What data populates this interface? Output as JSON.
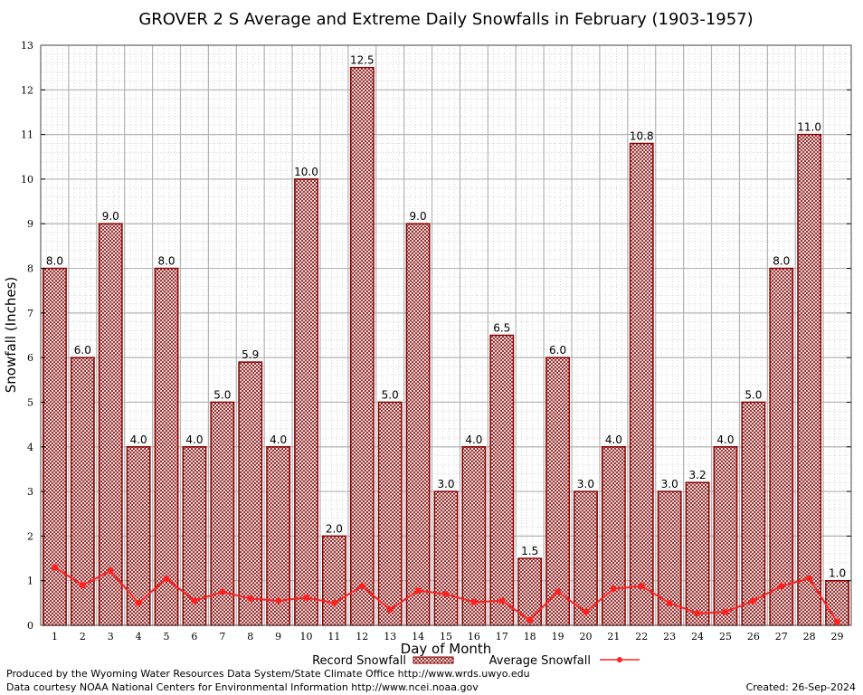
{
  "chart_data": {
    "type": "bar",
    "title": "GROVER 2 S Average and Extreme Daily Snowfalls in February (1903-1957)",
    "xlabel": "Day of Month",
    "ylabel": "Snowfall (Inches)",
    "ylim": [
      0,
      13
    ],
    "yticks": [
      "0",
      "1",
      "2",
      "3",
      "4",
      "5",
      "6",
      "7",
      "8",
      "9",
      "10",
      "11",
      "12",
      "13"
    ],
    "categories": [
      "1",
      "2",
      "3",
      "4",
      "5",
      "6",
      "7",
      "8",
      "9",
      "10",
      "11",
      "12",
      "13",
      "14",
      "15",
      "16",
      "17",
      "18",
      "19",
      "20",
      "21",
      "22",
      "23",
      "24",
      "25",
      "26",
      "27",
      "28",
      "29"
    ],
    "series": [
      {
        "name": "Record Snowfall",
        "kind": "bar",
        "color": "#8b0000",
        "values": [
          8.0,
          6.0,
          9.0,
          4.0,
          8.0,
          4.0,
          5.0,
          5.9,
          4.0,
          10.0,
          2.0,
          12.5,
          5.0,
          9.0,
          3.0,
          4.0,
          6.5,
          1.5,
          6.0,
          3.0,
          4.0,
          10.8,
          3.0,
          3.2,
          4.0,
          5.0,
          8.0,
          11.0,
          1.0
        ],
        "labels": [
          "8.0",
          "6.0",
          "9.0",
          "4.0",
          "8.0",
          "4.0",
          "5.0",
          "5.9",
          "4.0",
          "10.0",
          "2.0",
          "12.5",
          "5.0",
          "9.0",
          "3.0",
          "4.0",
          "6.5",
          "1.5",
          "6.0",
          "3.0",
          "4.0",
          "10.8",
          "3.0",
          "3.2",
          "4.0",
          "5.0",
          "8.0",
          "11.0",
          "1.0"
        ]
      },
      {
        "name": "Average Snowfall",
        "kind": "line",
        "color": "#ff2020",
        "values": [
          1.3,
          0.9,
          1.22,
          0.5,
          1.05,
          0.55,
          0.75,
          0.6,
          0.55,
          0.62,
          0.5,
          0.88,
          0.35,
          0.78,
          0.7,
          0.52,
          0.55,
          0.12,
          0.75,
          0.3,
          0.82,
          0.88,
          0.5,
          0.27,
          0.3,
          0.55,
          0.88,
          1.05,
          0.07
        ]
      }
    ],
    "grid": true,
    "legend_position": "bottom"
  },
  "footer": {
    "produced_by": "Produced by the Wyoming Water Resources Data System/State Climate Office http://www.wrds.uwyo.edu",
    "courtesy": "Data courtesy NOAA National Centers for Environmental Information http://www.ncei.noaa.gov",
    "created": "Created: 26-Sep-2024"
  }
}
